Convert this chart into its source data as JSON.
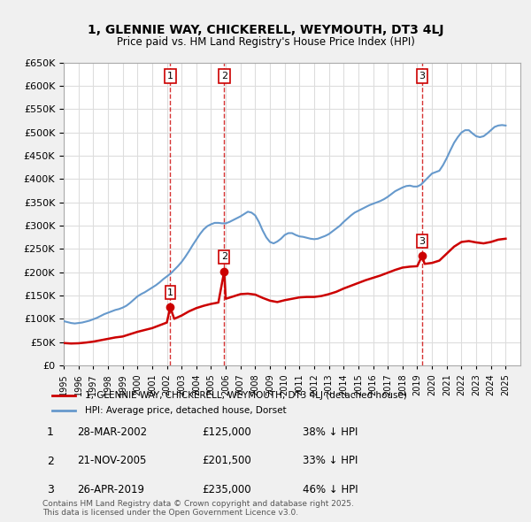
{
  "title": "1, GLENNIE WAY, CHICKERELL, WEYMOUTH, DT3 4LJ",
  "subtitle": "Price paid vs. HM Land Registry's House Price Index (HPI)",
  "ylabel": "",
  "ylim": [
    0,
    650000
  ],
  "yticks": [
    0,
    50000,
    100000,
    150000,
    200000,
    250000,
    300000,
    350000,
    400000,
    450000,
    500000,
    550000,
    600000,
    650000
  ],
  "xlim_start": 1995.0,
  "xlim_end": 2026.0,
  "sale_color": "#cc0000",
  "hpi_color": "#6699cc",
  "vline_color": "#cc0000",
  "legend_sale_label": "1, GLENNIE WAY, CHICKERELL, WEYMOUTH, DT3 4LJ (detached house)",
  "legend_hpi_label": "HPI: Average price, detached house, Dorset",
  "transactions": [
    {
      "num": 1,
      "date_label": "28-MAR-2002",
      "price": 125000,
      "pct": "38%",
      "year": 2002.23
    },
    {
      "num": 2,
      "date_label": "21-NOV-2005",
      "price": 201500,
      "pct": "33%",
      "year": 2005.89
    },
    {
      "num": 3,
      "date_label": "26-APR-2019",
      "price": 235000,
      "pct": "46%",
      "year": 2019.32
    }
  ],
  "footer": "Contains HM Land Registry data © Crown copyright and database right 2025.\nThis data is licensed under the Open Government Licence v3.0.",
  "hpi_series": {
    "years": [
      1995.0,
      1995.25,
      1995.5,
      1995.75,
      1996.0,
      1996.25,
      1996.5,
      1996.75,
      1997.0,
      1997.25,
      1997.5,
      1997.75,
      1998.0,
      1998.25,
      1998.5,
      1998.75,
      1999.0,
      1999.25,
      1999.5,
      1999.75,
      2000.0,
      2000.25,
      2000.5,
      2000.75,
      2001.0,
      2001.25,
      2001.5,
      2001.75,
      2002.0,
      2002.25,
      2002.5,
      2002.75,
      2003.0,
      2003.25,
      2003.5,
      2003.75,
      2004.0,
      2004.25,
      2004.5,
      2004.75,
      2005.0,
      2005.25,
      2005.5,
      2005.75,
      2006.0,
      2006.25,
      2006.5,
      2006.75,
      2007.0,
      2007.25,
      2007.5,
      2007.75,
      2008.0,
      2008.25,
      2008.5,
      2008.75,
      2009.0,
      2009.25,
      2009.5,
      2009.75,
      2010.0,
      2010.25,
      2010.5,
      2010.75,
      2011.0,
      2011.25,
      2011.5,
      2011.75,
      2012.0,
      2012.25,
      2012.5,
      2012.75,
      2013.0,
      2013.25,
      2013.5,
      2013.75,
      2014.0,
      2014.25,
      2014.5,
      2014.75,
      2015.0,
      2015.25,
      2015.5,
      2015.75,
      2016.0,
      2016.25,
      2016.5,
      2016.75,
      2017.0,
      2017.25,
      2017.5,
      2017.75,
      2018.0,
      2018.25,
      2018.5,
      2018.75,
      2019.0,
      2019.25,
      2019.5,
      2019.75,
      2020.0,
      2020.25,
      2020.5,
      2020.75,
      2021.0,
      2021.25,
      2021.5,
      2021.75,
      2022.0,
      2022.25,
      2022.5,
      2022.75,
      2023.0,
      2023.25,
      2023.5,
      2023.75,
      2024.0,
      2024.25,
      2024.5,
      2024.75,
      2025.0
    ],
    "values": [
      95000,
      93000,
      91000,
      90000,
      91000,
      92000,
      94000,
      96000,
      99000,
      102000,
      106000,
      110000,
      113000,
      116000,
      119000,
      121000,
      124000,
      128000,
      134000,
      141000,
      148000,
      153000,
      157000,
      162000,
      167000,
      172000,
      178000,
      185000,
      191000,
      197000,
      205000,
      213000,
      222000,
      233000,
      245000,
      258000,
      270000,
      282000,
      292000,
      299000,
      303000,
      306000,
      306000,
      305000,
      305000,
      308000,
      312000,
      316000,
      320000,
      325000,
      330000,
      328000,
      322000,
      308000,
      290000,
      275000,
      265000,
      262000,
      266000,
      272000,
      280000,
      284000,
      284000,
      280000,
      277000,
      276000,
      274000,
      272000,
      271000,
      272000,
      275000,
      278000,
      282000,
      288000,
      294000,
      300000,
      308000,
      315000,
      322000,
      328000,
      332000,
      336000,
      340000,
      344000,
      347000,
      350000,
      353000,
      357000,
      362000,
      368000,
      374000,
      378000,
      382000,
      385000,
      386000,
      384000,
      384000,
      388000,
      396000,
      404000,
      412000,
      415000,
      418000,
      430000,
      445000,
      462000,
      478000,
      490000,
      500000,
      505000,
      505000,
      498000,
      492000,
      490000,
      492000,
      498000,
      505000,
      512000,
      515000,
      516000,
      515000
    ]
  },
  "sale_series": {
    "years": [
      1995.0,
      1995.5,
      1996.0,
      1996.5,
      1997.0,
      1997.5,
      1998.0,
      1998.5,
      1999.0,
      1999.5,
      2000.0,
      2000.5,
      2001.0,
      2001.5,
      2002.0,
      2002.23,
      2002.5,
      2003.0,
      2003.5,
      2004.0,
      2004.5,
      2005.0,
      2005.5,
      2005.89,
      2006.0,
      2006.5,
      2007.0,
      2007.5,
      2008.0,
      2008.5,
      2009.0,
      2009.5,
      2010.0,
      2010.5,
      2011.0,
      2011.5,
      2012.0,
      2012.5,
      2013.0,
      2013.5,
      2014.0,
      2014.5,
      2015.0,
      2015.5,
      2016.0,
      2016.5,
      2017.0,
      2017.5,
      2018.0,
      2018.5,
      2019.0,
      2019.32,
      2019.5,
      2020.0,
      2020.5,
      2021.0,
      2021.5,
      2022.0,
      2022.5,
      2023.0,
      2023.5,
      2024.0,
      2024.5,
      2025.0
    ],
    "values": [
      48000,
      47000,
      47500,
      49000,
      51000,
      54000,
      57000,
      60000,
      62000,
      67000,
      72000,
      76000,
      80000,
      86000,
      92000,
      125000,
      100000,
      107000,
      116000,
      123000,
      128000,
      132000,
      135000,
      201500,
      143000,
      148000,
      153000,
      154000,
      152000,
      145000,
      139000,
      136000,
      140000,
      143000,
      146000,
      147000,
      147000,
      149000,
      153000,
      158000,
      165000,
      171000,
      177000,
      183000,
      188000,
      193000,
      199000,
      205000,
      210000,
      212000,
      213000,
      235000,
      218000,
      220000,
      225000,
      240000,
      255000,
      265000,
      267000,
      264000,
      262000,
      265000,
      270000,
      272000
    ]
  },
  "background_color": "#f0f0f0",
  "plot_bg_color": "#ffffff",
  "grid_color": "#dddddd"
}
